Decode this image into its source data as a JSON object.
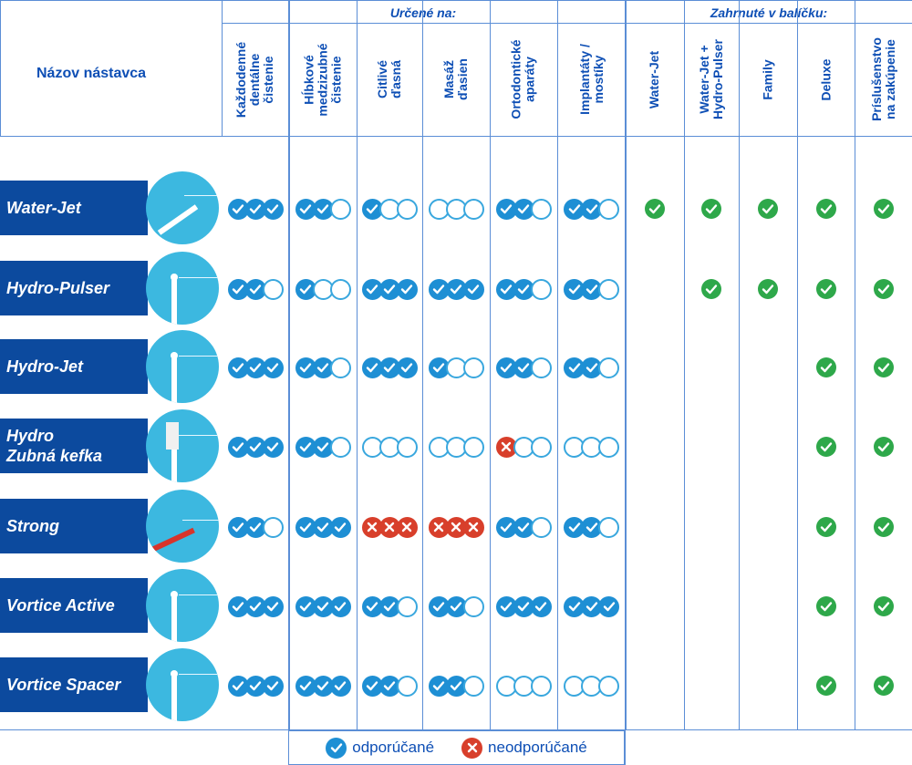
{
  "header": {
    "name_col": "Názov nástavca",
    "group_for": "Určené na:",
    "group_included": "Zahrnuté v balíčku:"
  },
  "columns_for": [
    "Každodenné\ndentálne\nčistenie",
    "Hĺbkové\nmedzizubné\nčistenie",
    "Citlivé\nďasná",
    "Masáž\nďasien",
    "Ortodontické\naparáty",
    "Implantáty /\nmostíky"
  ],
  "columns_included": [
    "Water-Jet",
    "Water-Jet +\nHydro-Pulser",
    "Family",
    "Deluxe",
    "Príslušenstvo\nna zakúpenie"
  ],
  "rows": [
    {
      "name": "Water-Jet",
      "ratings": [
        [
          1,
          1,
          1
        ],
        [
          1,
          1,
          0
        ],
        [
          1,
          0,
          0
        ],
        [
          0,
          0,
          0
        ],
        [
          1,
          1,
          0
        ],
        [
          1,
          1,
          0
        ]
      ],
      "included": [
        true,
        true,
        true,
        true,
        true
      ]
    },
    {
      "name": "Hydro-Pulser",
      "ratings": [
        [
          1,
          1,
          0
        ],
        [
          1,
          0,
          0
        ],
        [
          1,
          1,
          1
        ],
        [
          1,
          1,
          1
        ],
        [
          1,
          1,
          0
        ],
        [
          1,
          1,
          0
        ]
      ],
      "included": [
        false,
        true,
        true,
        true,
        true
      ]
    },
    {
      "name": "Hydro-Jet",
      "ratings": [
        [
          1,
          1,
          1
        ],
        [
          1,
          1,
          0
        ],
        [
          1,
          1,
          1
        ],
        [
          1,
          0,
          0
        ],
        [
          1,
          1,
          0
        ],
        [
          1,
          1,
          0
        ]
      ],
      "included": [
        false,
        false,
        false,
        true,
        true
      ]
    },
    {
      "name": "Hydro\nZubná kefka",
      "ratings": [
        [
          1,
          1,
          1
        ],
        [
          1,
          1,
          0
        ],
        [
          0,
          0,
          0
        ],
        [
          0,
          0,
          0
        ],
        [
          -1,
          0,
          0
        ],
        [
          0,
          0,
          0
        ]
      ],
      "included": [
        false,
        false,
        false,
        true,
        true
      ]
    },
    {
      "name": "Strong",
      "ratings": [
        [
          1,
          1,
          0
        ],
        [
          1,
          1,
          1
        ],
        [
          -1,
          -1,
          -1
        ],
        [
          -1,
          -1,
          -1
        ],
        [
          1,
          1,
          0
        ],
        [
          1,
          1,
          0
        ]
      ],
      "included": [
        false,
        false,
        false,
        true,
        true
      ]
    },
    {
      "name": "Vortice Active",
      "ratings": [
        [
          1,
          1,
          1
        ],
        [
          1,
          1,
          1
        ],
        [
          1,
          1,
          0
        ],
        [
          1,
          1,
          0
        ],
        [
          1,
          1,
          1
        ],
        [
          1,
          1,
          1
        ]
      ],
      "included": [
        false,
        false,
        false,
        true,
        true
      ]
    },
    {
      "name": "Vortice Spacer",
      "ratings": [
        [
          1,
          1,
          1
        ],
        [
          1,
          1,
          1
        ],
        [
          1,
          1,
          0
        ],
        [
          1,
          1,
          0
        ],
        [
          0,
          0,
          0
        ],
        [
          0,
          0,
          0
        ]
      ],
      "included": [
        false,
        false,
        false,
        true,
        true
      ]
    }
  ],
  "legend": {
    "recommended": "odporúčané",
    "not_recommended": "neodporúčané"
  },
  "colors": {
    "brand_blue": "#0c4a9e",
    "check_blue": "#1e8fd4",
    "cross_red": "#d83f2b",
    "included_green": "#2ea84a",
    "thumb_cyan": "#3cb8e0"
  }
}
